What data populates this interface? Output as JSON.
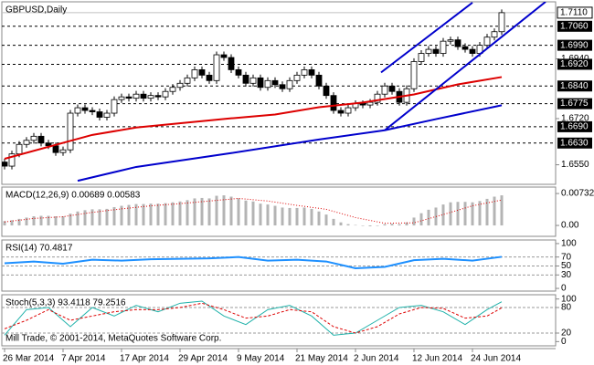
{
  "chart_data": [
    {
      "type": "candlestick",
      "title": "GBPUSD,Daily",
      "categories": [
        "26 Mar 2014",
        null,
        null,
        null,
        null,
        null,
        null,
        null,
        "7 Apr 2014",
        null,
        null,
        null,
        null,
        null,
        null,
        null,
        "17 Apr 2014",
        null,
        null,
        null,
        null,
        null,
        null,
        null,
        "29 Apr 2014",
        null,
        null,
        null,
        null,
        null,
        null,
        null,
        "9 May 2014",
        null,
        null,
        null,
        null,
        null,
        null,
        null,
        "21 May 2014",
        null,
        null,
        null,
        null,
        null,
        null,
        null,
        "2 Jun 2014",
        null,
        null,
        null,
        null,
        null,
        null,
        null,
        "12 Jun 2014",
        null,
        null,
        null,
        null,
        null,
        null,
        null,
        "24 Jun 2014",
        null,
        null,
        null,
        null
      ],
      "open": [
        1.656,
        1.6545,
        1.659,
        1.6625,
        1.664,
        1.6655,
        1.663,
        1.662,
        1.6595,
        1.6605,
        1.674,
        1.676,
        1.675,
        1.6745,
        1.6725,
        1.674,
        1.679,
        1.68,
        1.6795,
        1.681,
        1.6795,
        1.6805,
        1.68,
        1.682,
        1.6835,
        1.685,
        1.687,
        1.69,
        1.688,
        1.686,
        1.6955,
        1.6945,
        1.69,
        1.688,
        1.685,
        1.687,
        1.6835,
        1.686,
        1.6845,
        1.683,
        1.686,
        1.688,
        1.69,
        1.688,
        1.684,
        1.6805,
        1.675,
        1.674,
        1.676,
        1.6775,
        1.677,
        1.678,
        1.681,
        1.684,
        1.682,
        1.678,
        1.683,
        1.693,
        1.696,
        1.6975,
        1.696,
        1.7005,
        1.701,
        1.6985,
        1.6975,
        1.696,
        1.699,
        1.702,
        1.704
      ],
      "high": [
        1.6572,
        1.6602,
        1.6637,
        1.6652,
        1.6667,
        1.6667,
        1.6642,
        1.6632,
        1.6617,
        1.6752,
        1.6772,
        1.6772,
        1.6762,
        1.6757,
        1.6752,
        1.6802,
        1.6812,
        1.6812,
        1.6822,
        1.6822,
        1.6817,
        1.6817,
        1.6832,
        1.6847,
        1.6862,
        1.6882,
        1.6912,
        1.6912,
        1.6892,
        1.6967,
        1.6967,
        1.6957,
        1.6912,
        1.6892,
        1.6882,
        1.6882,
        1.6872,
        1.6872,
        1.6857,
        1.6872,
        1.6892,
        1.6912,
        1.6912,
        1.6892,
        1.6852,
        1.6817,
        1.6762,
        1.6772,
        1.6787,
        1.6787,
        1.6792,
        1.6822,
        1.6852,
        1.6852,
        1.6832,
        1.6842,
        1.6942,
        1.6972,
        1.6987,
        1.6987,
        1.7017,
        1.7022,
        1.7022,
        1.6997,
        1.6987,
        1.7002,
        1.7032,
        1.7052,
        1.7122
      ],
      "low": [
        1.6533,
        1.6533,
        1.6578,
        1.6613,
        1.6628,
        1.6618,
        1.6608,
        1.6583,
        1.6583,
        1.6593,
        1.6728,
        1.6738,
        1.6733,
        1.6713,
        1.6713,
        1.6728,
        1.6778,
        1.6783,
        1.6783,
        1.6783,
        1.6783,
        1.6788,
        1.6788,
        1.6808,
        1.6823,
        1.6838,
        1.6858,
        1.6868,
        1.6848,
        1.6848,
        1.6933,
        1.6888,
        1.6868,
        1.6838,
        1.6838,
        1.6823,
        1.6823,
        1.6833,
        1.6818,
        1.6818,
        1.6848,
        1.6868,
        1.6868,
        1.6828,
        1.6793,
        1.6738,
        1.6728,
        1.6728,
        1.6748,
        1.6758,
        1.6758,
        1.6768,
        1.6798,
        1.6808,
        1.6768,
        1.6768,
        1.6818,
        1.6918,
        1.6948,
        1.6948,
        1.6948,
        1.6993,
        1.6973,
        1.6963,
        1.6948,
        1.6948,
        1.6978,
        1.7008,
        1.7028
      ],
      "close": [
        1.6545,
        1.659,
        1.6625,
        1.664,
        1.6655,
        1.663,
        1.662,
        1.6595,
        1.6605,
        1.674,
        1.676,
        1.675,
        1.6745,
        1.6725,
        1.674,
        1.679,
        1.68,
        1.6795,
        1.681,
        1.6795,
        1.6805,
        1.68,
        1.682,
        1.6835,
        1.685,
        1.687,
        1.69,
        1.688,
        1.686,
        1.6955,
        1.6945,
        1.69,
        1.688,
        1.685,
        1.687,
        1.6835,
        1.686,
        1.6845,
        1.683,
        1.686,
        1.688,
        1.69,
        1.688,
        1.684,
        1.6805,
        1.675,
        1.674,
        1.676,
        1.6775,
        1.677,
        1.678,
        1.681,
        1.684,
        1.682,
        1.678,
        1.683,
        1.693,
        1.696,
        1.6975,
        1.696,
        1.7005,
        1.701,
        1.6985,
        1.6975,
        1.696,
        1.699,
        1.702,
        1.704,
        1.711
      ],
      "up_color": "#ffffff",
      "down_color": "#000000",
      "ylim": [
        1.6478,
        1.715
      ],
      "yticks": [
        {
          "value": 1.694,
          "label": "1.6940"
        },
        {
          "value": 1.672,
          "label": "1.6720"
        },
        {
          "value": 1.655,
          "label": "1.6550"
        }
      ],
      "price_levels": [
        {
          "value": 1.706,
          "label": "1.7060"
        },
        {
          "value": 1.699,
          "label": "1.6990"
        },
        {
          "value": 1.692,
          "label": "1.6920"
        },
        {
          "value": 1.684,
          "label": "1.6840"
        },
        1.6775,
        {
          "value": 1.669,
          "label": "1.6690"
        },
        {
          "value": 1.663,
          "label": "1.6630"
        }
      ],
      "last_price": {
        "value": 1.711,
        "label": "1.7110"
      },
      "lines": [
        {
          "color": "#dd0000",
          "x": [
            0,
            12,
            18,
            31,
            37,
            43,
            49,
            56,
            62,
            68
          ],
          "values": [
            1.6572,
            1.666,
            1.6687,
            1.6721,
            1.6735,
            1.6762,
            1.6779,
            1.6809,
            1.6846,
            1.6873
          ]
        },
        {
          "color": "#0000cc",
          "x": [
            10,
            18,
            31,
            43,
            52,
            59,
            68
          ],
          "values": [
            1.6491,
            1.6542,
            1.6593,
            1.6643,
            1.6677,
            1.6718,
            1.6769
          ]
        },
        {
          "color": "#0000cc",
          "x": [
            52,
            74
          ],
          "values": [
            1.6677,
            1.715
          ]
        },
        {
          "color": "#0000cc",
          "x": [
            51.5,
            64
          ],
          "values": [
            1.689,
            1.7147
          ]
        }
      ]
    },
    {
      "type": "macd",
      "title": "MACD(12,26,9) 0.00689 0.00583",
      "color": "#b4b4b4",
      "values": [
        0.001,
        0.0012,
        0.0015,
        0.0018,
        0.0021,
        0.0022,
        0.0022,
        0.0021,
        0.0021,
        0.0027,
        0.0032,
        0.0035,
        0.0037,
        0.0037,
        0.0038,
        0.0042,
        0.0045,
        0.0047,
        0.0049,
        0.0049,
        0.005,
        0.005,
        0.0051,
        0.0053,
        0.0055,
        0.0058,
        0.0062,
        0.0063,
        0.0062,
        0.0068,
        0.0069,
        0.0066,
        0.0062,
        0.0057,
        0.0055,
        0.005,
        0.0048,
        0.0045,
        0.0041,
        0.004,
        0.004,
        0.0041,
        0.0038,
        0.0032,
        0.0025,
        0.0015,
        0.0007,
        0.0003,
        0.0001,
        -0.0001,
        -0.0002,
        0.0,
        0.0003,
        0.0004,
        0.0003,
        0.0007,
        0.0018,
        0.0028,
        0.0036,
        0.0041,
        0.0048,
        0.0053,
        0.0054,
        0.0054,
        0.0053,
        0.0056,
        0.0061,
        0.0066,
        0.0069
      ],
      "ylim": [
        -0.0025,
        0.0088
      ],
      "yticks": [
        0.00732,
        {
          "value": 0,
          "label": "0.00"
        }
      ],
      "lines": [
        {
          "color": "#dd0000",
          "style": "dotted",
          "x": [
            0,
            4,
            8,
            12,
            16,
            20,
            24,
            28,
            32,
            36,
            40,
            44,
            48,
            52,
            56,
            60,
            64,
            68
          ],
          "values": [
            0.0008,
            0.0016,
            0.002,
            0.003,
            0.0038,
            0.0045,
            0.005,
            0.0056,
            0.0062,
            0.0056,
            0.0046,
            0.0037,
            0.0018,
            0.0005,
            0.0006,
            0.0025,
            0.0045,
            0.00583
          ]
        }
      ]
    },
    {
      "type": "rsi",
      "title": "RSI(14) 70.4817",
      "ylim": [
        -6,
        108
      ],
      "yticks": [
        100,
        70,
        50,
        30,
        0
      ],
      "grid": "dashed",
      "lines": [
        {
          "color": "#1e90ff",
          "x": [
            0,
            4,
            8,
            12,
            16,
            20,
            24,
            28,
            32,
            36,
            40,
            44,
            48,
            52,
            56,
            60,
            64,
            68
          ],
          "values": [
            56,
            60,
            55,
            64,
            62,
            65,
            66,
            67,
            70,
            62,
            64,
            60,
            45,
            48,
            63,
            66,
            62,
            70.4817
          ]
        }
      ]
    },
    {
      "type": "stochastic",
      "title": "Stoch(5,3,3) 93.4118 79.2516",
      "annotation": "Mill Trade, © 2001-2014, MetaQuotes Software Corp.",
      "ylim": [
        -10,
        110
      ],
      "yticks": [
        100,
        80,
        20,
        0
      ],
      "grid": "dashed",
      "lines": [
        {
          "color": "#20b2aa",
          "x": [
            0,
            3,
            6,
            9,
            12,
            15,
            18,
            21,
            24,
            27,
            30,
            33,
            36,
            39,
            42,
            45,
            48,
            51,
            54,
            57,
            60,
            63,
            66,
            68
          ],
          "values": [
            15,
            75,
            80,
            35,
            80,
            60,
            85,
            70,
            90,
            95,
            60,
            40,
            75,
            85,
            60,
            15,
            20,
            50,
            80,
            85,
            70,
            40,
            75,
            93.4118
          ]
        },
        {
          "color": "#dd0000",
          "style": "dashed",
          "x": [
            0,
            3,
            6,
            9,
            12,
            15,
            18,
            21,
            24,
            27,
            30,
            33,
            36,
            39,
            42,
            45,
            48,
            51,
            54,
            57,
            60,
            63,
            66,
            68
          ],
          "values": [
            30,
            50,
            75,
            50,
            60,
            70,
            75,
            75,
            80,
            90,
            75,
            55,
            60,
            75,
            70,
            35,
            20,
            35,
            65,
            80,
            78,
            55,
            60,
            79.2516
          ]
        }
      ]
    }
  ]
}
